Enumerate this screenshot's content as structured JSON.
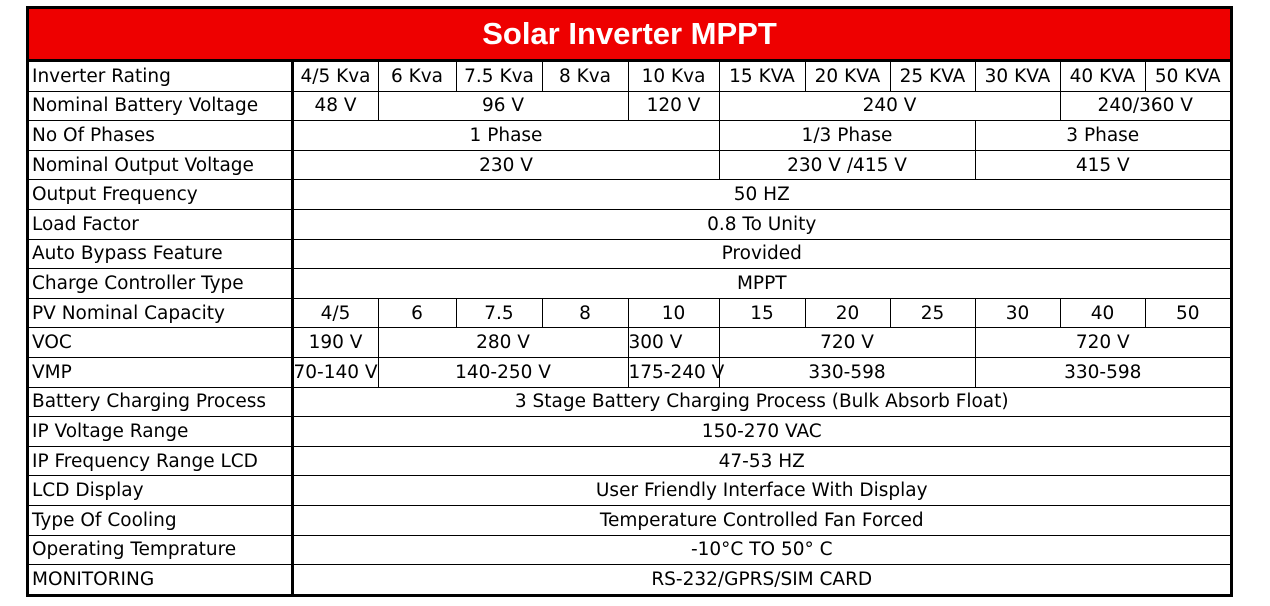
{
  "title": "Solar Inverter MPPT",
  "rows": {
    "inverter_rating": {
      "label": "Inverter Rating",
      "values": [
        "4/5 Kva",
        "6 Kva",
        "7.5 Kva",
        "8 Kva",
        "10 Kva",
        "15 KVA",
        "20 KVA",
        "25 KVA",
        "30 KVA",
        "40 KVA",
        "50 KVA"
      ]
    },
    "battery_voltage": {
      "label": "Nominal Battery Voltage",
      "values": [
        "48 V",
        "96 V",
        "120 V",
        "240 V",
        "240/360 V"
      ]
    },
    "phases": {
      "label": "No Of Phases",
      "values": [
        "1 Phase",
        "1/3 Phase",
        "3 Phase"
      ]
    },
    "output_voltage": {
      "label": "Nominal Output Voltage",
      "values": [
        "230 V",
        "230 V /415 V",
        "415 V"
      ]
    },
    "output_frequency": {
      "label": "Output Frequency",
      "value": "50 HZ"
    },
    "load_factor": {
      "label": "Load Factor",
      "value": "0.8 To Unity"
    },
    "auto_bypass": {
      "label": "Auto Bypass Feature",
      "value": "Provided"
    },
    "charge_controller": {
      "label": "Charge Controller Type",
      "value": "MPPT"
    },
    "pv_capacity": {
      "label": "PV Nominal Capacity",
      "values": [
        "4/5",
        "6",
        "7.5",
        "8",
        "10",
        "15",
        "20",
        "25",
        "30",
        "40",
        "50"
      ]
    },
    "voc": {
      "label": "VOC",
      "values": [
        "190 V",
        "280 V",
        "300 V",
        "720 V",
        "720 V"
      ]
    },
    "vmp": {
      "label": "VMP",
      "values": [
        "70-140 V",
        "140-250 V",
        "175-240 V",
        "330-598",
        "330-598"
      ]
    },
    "charging_process": {
      "label": "Battery Charging Process",
      "value": "3 Stage Battery Charging Process (Bulk Absorb Float)"
    },
    "ip_voltage": {
      "label": "IP Voltage Range",
      "value": "150-270 VAC"
    },
    "ip_frequency": {
      "label": "IP Frequency Range LCD",
      "value": "47-53 HZ"
    },
    "lcd_display": {
      "label": "LCD Display",
      "value": "User Friendly Interface With Display"
    },
    "cooling": {
      "label": "Type Of Cooling",
      "value": "Temperature Controlled Fan Forced"
    },
    "operating_temp": {
      "label": "Operating Temprature",
      "value": "-10°C TO 50° C"
    },
    "monitoring": {
      "label": "MONITORING",
      "value": "RS-232/GPRS/SIM CARD"
    }
  },
  "colors": {
    "title_background": "#ee0000",
    "title_text": "#ffffff",
    "border": "#000000"
  }
}
